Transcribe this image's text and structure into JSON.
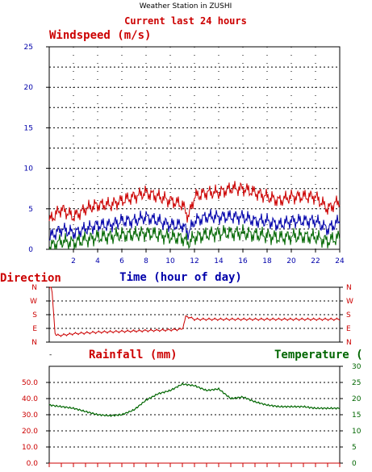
{
  "title": "Weather Station in ZUSHI",
  "subtitle": "Current last 24 hours",
  "colors": {
    "red": "#cc0000",
    "blue": "#0000aa",
    "green": "#006600",
    "axis": "#000000",
    "grid": "#000000"
  },
  "chart_data": [
    {
      "type": "line",
      "title": "Windspeed (m/s)",
      "xlabel": "Time (hour of day)",
      "ylabel": "",
      "xlim": [
        0,
        24
      ],
      "ylim": [
        0,
        25
      ],
      "x_ticks": [
        "2",
        "4",
        "6",
        "8",
        "10",
        "12",
        "14",
        "16",
        "18",
        "20",
        "22",
        "24"
      ],
      "y_ticks": [
        "0",
        "5",
        "10",
        "15",
        "20",
        "25"
      ],
      "grid": true,
      "series": [
        {
          "color": "#cc0000",
          "x": [
            0,
            1,
            2,
            3,
            4,
            5,
            6,
            7,
            8,
            9,
            10,
            11,
            11.5,
            12,
            13,
            14,
            15,
            16,
            17,
            18,
            19,
            20,
            21,
            22,
            23,
            24
          ],
          "values": [
            3.5,
            5,
            4,
            5,
            5.5,
            5.5,
            6,
            6.5,
            7,
            6.5,
            6,
            5.5,
            4,
            6.5,
            7,
            7,
            7.5,
            7.5,
            7,
            6.5,
            6,
            6.5,
            6.5,
            6.5,
            5,
            6
          ]
        },
        {
          "color": "#0000aa",
          "x": [
            0,
            1,
            2,
            3,
            4,
            5,
            6,
            7,
            8,
            9,
            10,
            11,
            11.5,
            12,
            13,
            14,
            15,
            16,
            17,
            18,
            19,
            20,
            21,
            22,
            23,
            24
          ],
          "values": [
            1.5,
            2.5,
            2,
            2.5,
            3,
            3,
            3.5,
            3.5,
            4,
            3.5,
            3,
            3,
            2,
            3.5,
            4,
            4,
            4,
            4,
            3.5,
            3.5,
            3,
            3.5,
            3.5,
            3.5,
            2.5,
            3.5
          ]
        },
        {
          "color": "#006600",
          "x": [
            0,
            1,
            2,
            3,
            4,
            5,
            6,
            7,
            8,
            9,
            10,
            11,
            11.5,
            12,
            13,
            14,
            15,
            16,
            17,
            18,
            19,
            20,
            21,
            22,
            23,
            24
          ],
          "values": [
            0.3,
            1,
            0.8,
            1.2,
            1.5,
            1.6,
            1.8,
            1.8,
            2,
            1.8,
            1.5,
            1.4,
            0.8,
            1.5,
            1.8,
            2,
            2,
            2,
            1.8,
            1.7,
            1.4,
            1.6,
            1.6,
            1.5,
            1,
            1.5
          ]
        }
      ]
    },
    {
      "type": "line",
      "title": "Direction",
      "xlabel": "",
      "ylabel": "",
      "xlim": [
        0,
        24
      ],
      "y_ticks": [
        "N",
        "W",
        "S",
        "E",
        "N"
      ],
      "series": [
        {
          "color": "#cc0000",
          "x": [
            0,
            0.2,
            0.5,
            1,
            2,
            3,
            4,
            6,
            8,
            10,
            11,
            11.3,
            12,
            14,
            16,
            18,
            20,
            22,
            24
          ],
          "values": [
            360,
            360,
            45,
            45,
            55,
            60,
            65,
            70,
            75,
            80,
            85,
            170,
            150,
            150,
            150,
            150,
            150,
            150,
            150
          ]
        }
      ]
    },
    {
      "type": "line",
      "title": "Rainfall (mm)",
      "xlabel": "",
      "ylabel": "",
      "xlim": [
        0,
        24
      ],
      "ylim": [
        0,
        60
      ],
      "y_ticks": [
        "0.0",
        "10.0",
        "20.0",
        "30.0",
        "40.0",
        "50.0"
      ],
      "grid": true,
      "series": [
        {
          "name": "Rainfall (mm)",
          "color": "#cc0000",
          "x": [
            0,
            24
          ],
          "values": [
            0,
            0
          ]
        }
      ]
    },
    {
      "type": "line",
      "title": "Temperature (",
      "xlabel": "",
      "ylabel": "",
      "xlim": [
        0,
        24
      ],
      "ylim": [
        0,
        30
      ],
      "y_ticks": [
        "0",
        "5",
        "10",
        "15",
        "20",
        "25",
        "30"
      ],
      "series": [
        {
          "name": "Temperature (",
          "color": "#006600",
          "x": [
            0,
            1,
            2,
            3,
            4,
            5,
            6,
            7,
            8,
            9,
            10,
            11,
            12,
            13,
            14,
            15,
            16,
            17,
            18,
            19,
            20,
            21,
            22,
            23,
            24
          ],
          "values": [
            18,
            17.5,
            17,
            16,
            15,
            14.7,
            15,
            16.5,
            19.5,
            21.5,
            22.5,
            24.5,
            24,
            22.5,
            23,
            20,
            20.5,
            19,
            18,
            17.5,
            17.5,
            17.5,
            17,
            17,
            17
          ]
        }
      ]
    }
  ]
}
